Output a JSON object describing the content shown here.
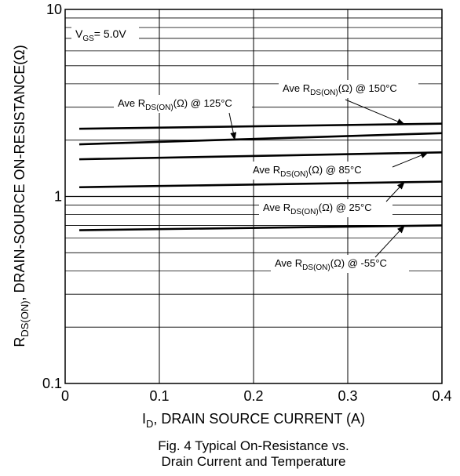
{
  "chart_data": {
    "type": "line",
    "x": [
      0.015,
      0.4
    ],
    "xlim": [
      0,
      0.4
    ],
    "ylim": [
      0.1,
      10
    ],
    "yscale": "log",
    "grid": true,
    "xticks": [
      "0",
      "0.1",
      "0.2",
      "0.3",
      "0.4"
    ],
    "yticks": [
      "0.1",
      "1",
      "10"
    ],
    "xlabel": {
      "main": "I",
      "sub": "D",
      "rest": ", DRAIN SOURCE CURRENT (A)"
    },
    "ylabel": {
      "main": "R",
      "sub": "DS(ON)",
      "rest": ", DRAIN-SOURCE ON-RESISTANCE(Ω)"
    },
    "condition": {
      "main": "V",
      "sub": "GS",
      "rest": "= 5.0V"
    },
    "series": [
      {
        "name": "150°C",
        "values": [
          2.3,
          2.45
        ]
      },
      {
        "name": "125°C",
        "values": [
          1.9,
          2.18
        ]
      },
      {
        "name": "85°C",
        "values": [
          1.58,
          1.72
        ]
      },
      {
        "name": "25°C",
        "values": [
          1.12,
          1.2
        ]
      },
      {
        "name": "-55°C",
        "values": [
          0.66,
          0.7
        ]
      }
    ],
    "annotations": [
      {
        "series": "150°C",
        "pre": "Ave R",
        "sub": "DS(ON)",
        "post": "(Ω) @ 150°C"
      },
      {
        "series": "125°C",
        "pre": "Ave R",
        "sub": "DS(ON)",
        "post": "(Ω) @ 125°C"
      },
      {
        "series": "85°C",
        "pre": "Ave R",
        "sub": "DS(ON)",
        "post": "(Ω) @ 85°C"
      },
      {
        "series": "25°C",
        "pre": "Ave R",
        "sub": "DS(ON)",
        "post": "(Ω) @ 25°C"
      },
      {
        "series": "-55°C",
        "pre": "Ave R",
        "sub": "DS(ON)",
        "post": "(Ω) @ -55°C"
      }
    ],
    "caption": [
      "Fig. 4  Typical On-Resistance vs.",
      "Drain Current and Temperature"
    ]
  }
}
